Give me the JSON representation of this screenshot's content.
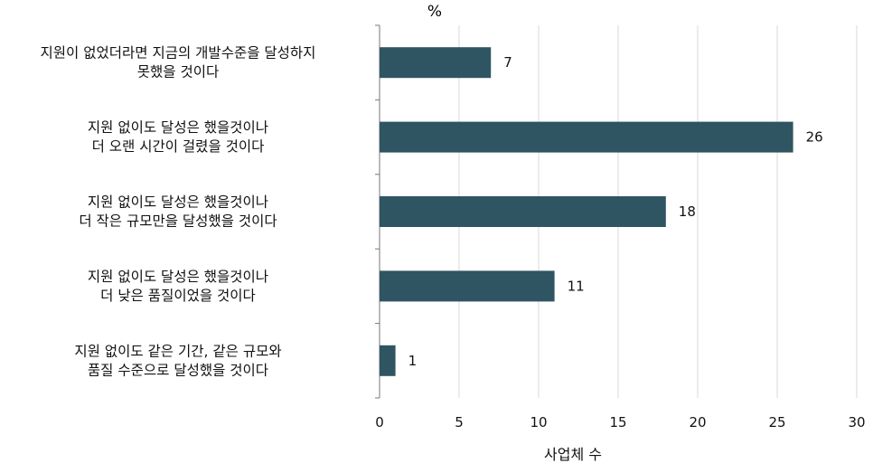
{
  "chart_data": {
    "type": "bar",
    "orientation": "horizontal",
    "unit_label": "%",
    "xlabel": "사업체 수",
    "categories": [
      [
        "지원이 없었더라면 지금의 개발수준을  달성하지",
        "못했을 것이다"
      ],
      [
        "지원 없이도 달성은 했을것이나",
        "더 오랜 시간이 걸렸을 것이다"
      ],
      [
        "지원 없이도 달성은 했을것이나",
        "더 작은 규모만을 달성했을 것이다"
      ],
      [
        "지원 없이도 달성은 했을것이나",
        "더 낮은 품질이었을 것이다"
      ],
      [
        "지원 없이도 같은 기간, 같은 규모와",
        "품질 수준으로 달성했을 것이다"
      ]
    ],
    "values": [
      7,
      26,
      18,
      11,
      1
    ],
    "xlim": [
      0,
      30
    ],
    "xticks": [
      0,
      5,
      10,
      15,
      20,
      25,
      30
    ],
    "bar_color": "#2f5562",
    "grid": "vertical",
    "legend": "none"
  }
}
